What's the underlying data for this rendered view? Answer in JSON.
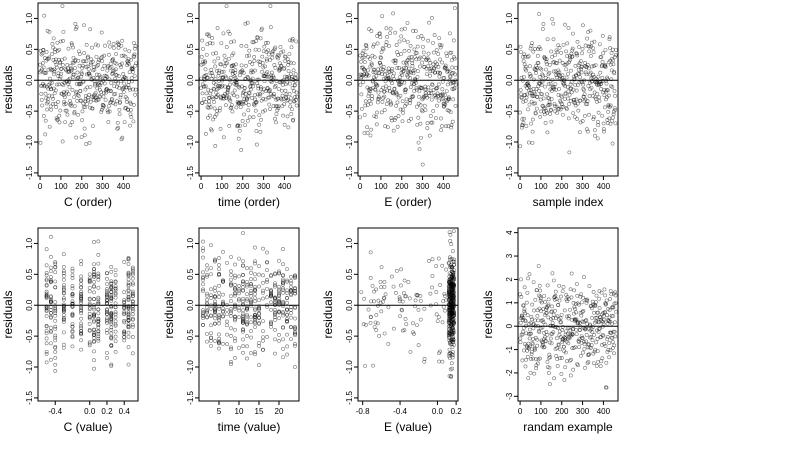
{
  "chart_data": [
    {
      "type": "scatter",
      "xlabel": "C (order)",
      "ylabel": "residuals",
      "xlim": [
        -10,
        470
      ],
      "ylim": [
        -1.55,
        1.25
      ],
      "xticks": [
        "0",
        "100",
        "200",
        "300",
        "400"
      ],
      "yticks": [
        "-1.5",
        "-1.0",
        "-0.5",
        "0.0",
        "0.5",
        "1.0"
      ],
      "reference_line_y": 0,
      "points": {
        "n": 460,
        "x_range": [
          0,
          460
        ],
        "y_sd": 0.4,
        "pattern": "uniform index"
      }
    },
    {
      "type": "scatter",
      "xlabel": "time (order)",
      "ylabel": "residuals",
      "xlim": [
        -10,
        470
      ],
      "ylim": [
        -1.55,
        1.25
      ],
      "xticks": [
        "0",
        "100",
        "200",
        "300",
        "400"
      ],
      "yticks": [
        "-1.5",
        "-1.0",
        "-0.5",
        "0.0",
        "0.5",
        "1.0"
      ],
      "reference_line_y": 0,
      "points": {
        "n": 460,
        "x_range": [
          0,
          460
        ],
        "y_sd": 0.4,
        "pattern": "uniform index"
      }
    },
    {
      "type": "scatter",
      "xlabel": "E (order)",
      "ylabel": "residuals",
      "xlim": [
        -10,
        470
      ],
      "ylim": [
        -1.55,
        1.25
      ],
      "xticks": [
        "0",
        "100",
        "200",
        "300",
        "400"
      ],
      "yticks": [
        "-1.5",
        "-1.0",
        "-0.5",
        "0.0",
        "0.5",
        "1.0"
      ],
      "reference_line_y": 0,
      "points": {
        "n": 460,
        "x_range": [
          0,
          460
        ],
        "y_sd": 0.4,
        "pattern": "uniform index"
      }
    },
    {
      "type": "scatter",
      "xlabel": "sample index",
      "ylabel": "residuals",
      "xlim": [
        -10,
        470
      ],
      "ylim": [
        -1.55,
        1.25
      ],
      "xticks": [
        "0",
        "100",
        "200",
        "300",
        "400"
      ],
      "yticks": [
        "-1.5",
        "-1.0",
        "-0.5",
        "0.0",
        "0.5",
        "1.0"
      ],
      "reference_line_y": 0,
      "points": {
        "n": 460,
        "x_range": [
          0,
          460
        ],
        "y_sd": 0.4,
        "pattern": "uniform index"
      }
    },
    {
      "type": "scatter",
      "xlabel": "C (value)",
      "ylabel": "residuals",
      "xlim": [
        -0.6,
        0.56
      ],
      "ylim": [
        -1.55,
        1.25
      ],
      "xticks": [
        "-0.4",
        "0.0",
        "0.2",
        "0.4"
      ],
      "yticks": [
        "-1.5",
        "-1.0",
        "-0.5",
        "0.0",
        "0.5",
        "1.0"
      ],
      "reference_line_y": 0,
      "points": {
        "n": 460,
        "x_values": [
          -0.5,
          -0.45,
          -0.4,
          -0.3,
          -0.2,
          -0.1,
          0.0,
          0.05,
          0.1,
          0.2,
          0.25,
          0.3,
          0.4,
          0.45,
          0.5
        ],
        "y_sd": 0.4,
        "pattern": "discrete columns"
      }
    },
    {
      "type": "scatter",
      "xlabel": "time (value)",
      "ylabel": "residuals",
      "xlim": [
        0,
        25
      ],
      "ylim": [
        -1.55,
        1.25
      ],
      "xticks": [
        "5",
        "10",
        "15",
        "20"
      ],
      "yticks": [
        "-1.5",
        "-1.0",
        "-0.5",
        "0.0",
        "0.5",
        "1.0"
      ],
      "reference_line_y": 0,
      "points": {
        "n": 460,
        "x_values": [
          1,
          2,
          3,
          4,
          5,
          6,
          7,
          8,
          9,
          10,
          11,
          12,
          13,
          14,
          15,
          16,
          17,
          18,
          19,
          20,
          21,
          22,
          23,
          24
        ],
        "y_sd": 0.4,
        "pattern": "integer columns"
      }
    },
    {
      "type": "scatter",
      "xlabel": "E (value)",
      "ylabel": "residuals",
      "xlim": [
        -0.85,
        0.22
      ],
      "ylim": [
        -1.55,
        1.25
      ],
      "xticks": [
        "-0.8",
        "-0.4",
        "0.0",
        "0.2"
      ],
      "yticks": [
        "-1.5",
        "-1.0",
        "-0.5",
        "0.0",
        "0.5",
        "1.0"
      ],
      "reference_line_y": 0,
      "points": {
        "n": 460,
        "dense_range": [
          0.12,
          0.18
        ],
        "sparse_range": [
          -0.82,
          0.1
        ],
        "y_sd": 0.4,
        "pattern": "dense near right edge"
      }
    },
    {
      "type": "scatter",
      "xlabel": "randam example",
      "ylabel": "residuals",
      "xlim": [
        -10,
        470
      ],
      "ylim": [
        -3.2,
        4.2
      ],
      "xticks": [
        "0",
        "100",
        "200",
        "300",
        "400"
      ],
      "yticks": [
        "-3",
        "-2",
        "-1",
        "0",
        "1",
        "2",
        "3",
        "4"
      ],
      "reference_line_y": 0,
      "points": {
        "n": 460,
        "x_range": [
          0,
          460
        ],
        "y_sd": 1.0,
        "pattern": "random normal"
      }
    }
  ]
}
